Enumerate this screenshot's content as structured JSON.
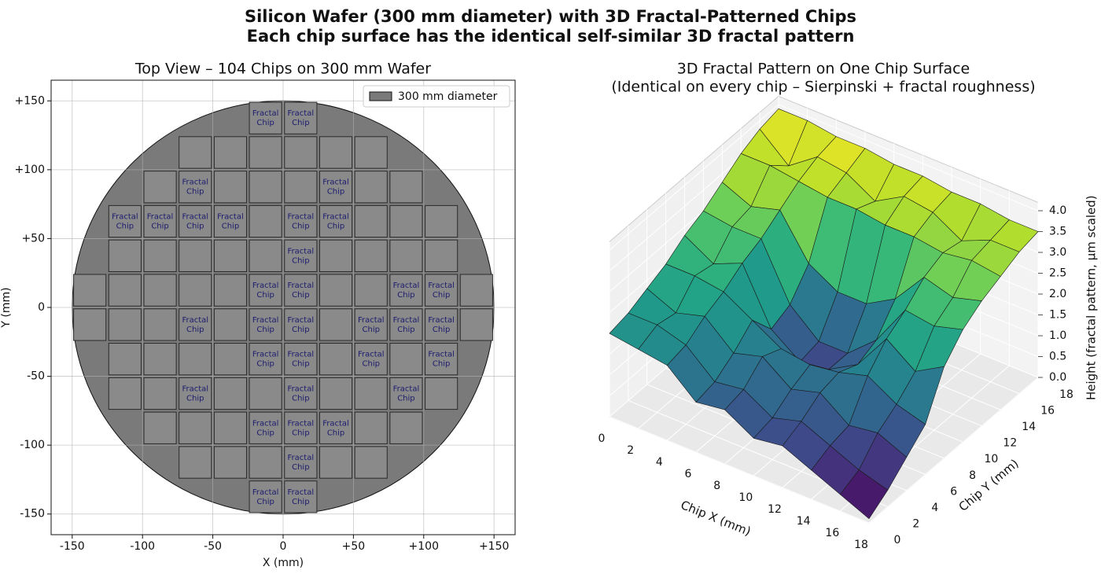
{
  "title": "Silicon Wafer (300 mm diameter) with 3D Fractal-Patterned Chips",
  "subtitle": "Each chip surface has the identical self-similar 3D fractal pattern",
  "chart_data": [
    {
      "type": "wafer",
      "title": "Top View – 104 Chips on 300 mm Wafer",
      "xlabel": "X (mm)",
      "ylabel": "Y (mm)",
      "xlim": [
        -165,
        165
      ],
      "ylim": [
        -165,
        165
      ],
      "xticks": [
        -150,
        -100,
        -50,
        0,
        {
          "value": 50,
          "label": "+50"
        },
        {
          "value": 100,
          "label": "+100"
        },
        {
          "value": 150,
          "label": "+150"
        }
      ],
      "yticks": [
        -150,
        -100,
        -50,
        0,
        {
          "value": 50,
          "label": "+50"
        },
        {
          "value": 100,
          "label": "+100"
        },
        {
          "value": 150,
          "label": "+150"
        }
      ],
      "grid": true,
      "legend": {
        "label": "300 mm diameter",
        "position": "upper right"
      },
      "wafer": {
        "radius": 150,
        "color": "#7a7a7a"
      },
      "chip_color": "#8a8a8a",
      "label_color": "#1c1c6e",
      "chip_rows": [
        {
          "y": 137.5,
          "x": [
            -12.5,
            12.5
          ],
          "labels": [
            "Fractal Chip",
            "Fractal Chip"
          ]
        },
        {
          "y": 112.5,
          "x": [
            -62.5,
            -37.5,
            -12.5,
            12.5,
            37.5,
            62.5
          ],
          "labels": [
            null,
            null,
            null,
            null,
            null,
            null
          ]
        },
        {
          "y": 87.5,
          "x": [
            -87.5,
            -62.5,
            -37.5,
            -12.5,
            12.5,
            37.5,
            62.5,
            87.5
          ],
          "labels": [
            null,
            "Fractal Chip",
            null,
            null,
            null,
            "Fractal Chip",
            null,
            null
          ]
        },
        {
          "y": 62.5,
          "x": [
            -112.5,
            -87.5,
            -62.5,
            -37.5,
            -12.5,
            12.5,
            37.5,
            62.5,
            87.5,
            112.5
          ],
          "labels": [
            "Fractal Chip",
            "Fractal Chip",
            "Fractal Chip",
            "Fractal Chip",
            null,
            "Fractal Chip",
            "Fractal Chip",
            null,
            null,
            null
          ]
        },
        {
          "y": 37.5,
          "x": [
            -112.5,
            -87.5,
            -62.5,
            -37.5,
            -12.5,
            12.5,
            37.5,
            62.5,
            87.5,
            112.5
          ],
          "labels": [
            null,
            null,
            null,
            null,
            null,
            "Fractal Chip",
            null,
            null,
            null,
            null
          ]
        },
        {
          "y": 12.5,
          "x": [
            -137.5,
            -112.5,
            -87.5,
            -62.5,
            -37.5,
            -12.5,
            12.5,
            37.5,
            62.5,
            87.5,
            112.5,
            137.5
          ],
          "labels": [
            null,
            null,
            null,
            null,
            null,
            "Fractal Chip",
            "Fractal Chip",
            null,
            null,
            "Fractal Chip",
            "Fractal Chip",
            null
          ]
        },
        {
          "y": -12.5,
          "x": [
            -137.5,
            -112.5,
            -87.5,
            -62.5,
            -37.5,
            -12.5,
            12.5,
            37.5,
            62.5,
            87.5,
            112.5,
            137.5
          ],
          "labels": [
            null,
            null,
            null,
            "Fractal Chip",
            null,
            "Fractal Chip",
            "Fractal Chip",
            null,
            "Fractal Chip",
            "Fractal Chip",
            "Fractal Chip",
            null
          ]
        },
        {
          "y": -37.5,
          "x": [
            -112.5,
            -87.5,
            -62.5,
            -37.5,
            -12.5,
            12.5,
            37.5,
            62.5,
            87.5,
            112.5
          ],
          "labels": [
            null,
            null,
            null,
            null,
            "Fractal Chip",
            "Fractal Chip",
            null,
            "Fractal Chip",
            null,
            "Fractal Chip"
          ]
        },
        {
          "y": -62.5,
          "x": [
            -112.5,
            -87.5,
            -62.5,
            -37.5,
            -12.5,
            12.5,
            37.5,
            62.5,
            87.5,
            112.5
          ],
          "labels": [
            null,
            null,
            "Fractal Chip",
            null,
            null,
            "Fractal Chip",
            null,
            null,
            "Fractal Chip",
            null
          ]
        },
        {
          "y": -87.5,
          "x": [
            -87.5,
            -62.5,
            -37.5,
            -12.5,
            12.5,
            37.5,
            62.5,
            87.5
          ],
          "labels": [
            null,
            null,
            null,
            "Fractal Chip",
            "Fractal Chip",
            "Fractal Chip",
            null,
            null
          ]
        },
        {
          "y": -112.5,
          "x": [
            -62.5,
            -37.5,
            -12.5,
            12.5,
            37.5,
            62.5
          ],
          "labels": [
            null,
            null,
            null,
            "Fractal Chip",
            null,
            null
          ]
        },
        {
          "y": -137.5,
          "x": [
            -12.5,
            12.5
          ],
          "labels": [
            "Fractal Chip",
            "Fractal Chip"
          ]
        }
      ]
    },
    {
      "type": "surface",
      "title": "3D Fractal Pattern on One Chip Surface",
      "subtitle": "(Identical on every chip – Sierpinski + fractal roughness)",
      "xlabel": "Chip X (mm)",
      "ylabel": "Chip Y (mm)",
      "zlabel": "Height (fractal pattern, μm scaled)",
      "colormap": "viridis",
      "xlim": [
        0,
        18
      ],
      "ylim": [
        0,
        18
      ],
      "zlim": [
        0,
        4.2
      ],
      "xticks": [
        0,
        2,
        4,
        6,
        8,
        10,
        12,
        14,
        16,
        18
      ],
      "yticks": [
        0,
        2,
        4,
        6,
        8,
        10,
        12,
        14,
        16,
        18
      ],
      "zticks": [
        {
          "value": 0,
          "label": "0.0"
        },
        0.5,
        {
          "value": 1,
          "label": "1.0"
        },
        1.5,
        {
          "value": 2,
          "label": "2.0"
        },
        2.5,
        {
          "value": 3,
          "label": "3.0"
        },
        3.5,
        {
          "value": 4,
          "label": "4.0"
        }
      ],
      "grid": true,
      "x": [
        0,
        2,
        4,
        6,
        8,
        10,
        12,
        14,
        16,
        18
      ],
      "y": [
        0,
        2,
        4,
        6,
        8,
        10,
        12,
        14,
        16,
        18
      ],
      "z": [
        [
          2.0,
          1.9,
          1.8,
          1.2,
          1.3,
          0.9,
          1.0,
          0.7,
          0.4,
          0.1
        ],
        [
          2.1,
          2.1,
          1.9,
          1.3,
          1.4,
          1.0,
          1.2,
          0.9,
          0.6,
          0.4
        ],
        [
          2.3,
          2.0,
          2.2,
          1.6,
          1.8,
          1.3,
          1.5,
          1.0,
          1.1,
          0.8
        ],
        [
          2.5,
          2.5,
          2.4,
          2.0,
          1.6,
          1.5,
          1.6,
          1.8,
          1.4,
          1.2
        ],
        [
          2.8,
          2.4,
          2.7,
          1.4,
          0.9,
          1.0,
          1.4,
          2.3,
          1.8,
          2.2
        ],
        [
          3.0,
          2.9,
          2.9,
          1.6,
          1.0,
          1.0,
          1.6,
          2.6,
          2.5,
          2.7
        ],
        [
          3.3,
          3.0,
          3.2,
          2.2,
          1.8,
          1.8,
          2.2,
          3.0,
          2.8,
          3.0
        ],
        [
          3.6,
          3.6,
          3.5,
          3.4,
          3.4,
          3.3,
          3.3,
          3.2,
          3.3,
          3.2
        ],
        [
          3.8,
          3.2,
          3.7,
          3.6,
          3.2,
          3.6,
          3.5,
          3.1,
          3.4,
          3.4
        ],
        [
          3.9,
          3.9,
          3.8,
          3.8,
          3.7,
          3.7,
          3.6,
          3.6,
          3.5,
          3.5
        ]
      ]
    }
  ]
}
